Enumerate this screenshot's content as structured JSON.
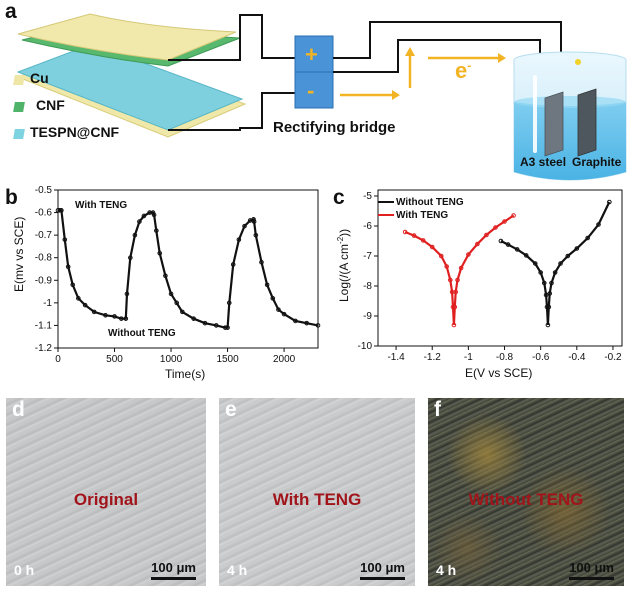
{
  "panel_a": {
    "label": "a",
    "legend": [
      {
        "name": "Cu",
        "color": "#efe6a6"
      },
      {
        "name": "CNF",
        "color": "#4fb36a"
      },
      {
        "name": "TESPN@CNF",
        "color": "#7ed3e0"
      }
    ],
    "bridge_plus": "+",
    "bridge_minus": "-",
    "bridge_label": "Rectifying bridge",
    "electron": "e",
    "electron_sup": "-",
    "electrode_left": "A3 steel",
    "electrode_right": "Graphite",
    "colors": {
      "arrow": "#f2b324",
      "bridge": "#4a93d6",
      "water": "#6fc3ea"
    }
  },
  "panel_b": {
    "label": "b",
    "annotations": {
      "with": "With TENG",
      "without": "Without TENG"
    },
    "chart_data": {
      "type": "line",
      "title": "",
      "xlabel": "Time(s)",
      "ylabel": "E(mv vs SCE)",
      "xlim": [
        0,
        2300
      ],
      "ylim": [
        -1.2,
        -0.5
      ],
      "xticks": [
        0,
        500,
        1000,
        1500,
        2000
      ],
      "yticks": [
        -0.5,
        -0.6,
        -0.7,
        -0.8,
        -0.9,
        -1.0,
        -1.1,
        -1.2
      ],
      "x": [
        0,
        15,
        30,
        60,
        90,
        130,
        180,
        240,
        320,
        420,
        500,
        560,
        600,
        610,
        640,
        680,
        720,
        760,
        810,
        840,
        850,
        870,
        900,
        950,
        1000,
        1050,
        1100,
        1200,
        1300,
        1400,
        1480,
        1500,
        1515,
        1550,
        1600,
        1650,
        1700,
        1730,
        1735,
        1750,
        1800,
        1850,
        1900,
        1950,
        2000,
        2100,
        2200,
        2300
      ],
      "values": [
        -0.59,
        -0.59,
        -0.59,
        -0.72,
        -0.84,
        -0.92,
        -0.98,
        -1.01,
        -1.04,
        -1.055,
        -1.06,
        -1.07,
        -1.07,
        -0.96,
        -0.8,
        -0.7,
        -0.64,
        -0.615,
        -0.6,
        -0.6,
        -0.61,
        -0.68,
        -0.78,
        -0.88,
        -0.96,
        -1.0,
        -1.04,
        -1.07,
        -1.09,
        -1.1,
        -1.11,
        -1.11,
        -1.0,
        -0.83,
        -0.72,
        -0.66,
        -0.635,
        -0.63,
        -0.64,
        -0.7,
        -0.82,
        -0.92,
        -0.98,
        -1.03,
        -1.05,
        -1.08,
        -1.09,
        -1.1
      ],
      "series_color": "#111111"
    }
  },
  "panel_c": {
    "label": "c",
    "chart_data": {
      "type": "line",
      "title": "",
      "xlabel": "E(V vs SCE)",
      "ylabel": "Log(/(A cm",
      "ylabel_sup": "-2",
      "ylabel_end": "))",
      "xlim": [
        -1.5,
        -0.15
      ],
      "ylim": [
        -10,
        -4.8
      ],
      "xticks": [
        -1.4,
        -1.2,
        -1.0,
        -0.8,
        -0.6,
        -0.4,
        -0.2
      ],
      "yticks": [
        -5,
        -6,
        -7,
        -8,
        -9,
        -10
      ],
      "series": [
        {
          "name": "Without TENG",
          "color": "#111111",
          "x": [
            -0.82,
            -0.78,
            -0.73,
            -0.68,
            -0.63,
            -0.6,
            -0.58,
            -0.57,
            -0.565,
            -0.56,
            -0.555,
            -0.55,
            -0.54,
            -0.52,
            -0.49,
            -0.45,
            -0.4,
            -0.34,
            -0.28,
            -0.22
          ],
          "y": [
            -6.5,
            -6.62,
            -6.78,
            -6.98,
            -7.25,
            -7.55,
            -7.9,
            -8.3,
            -8.7,
            -9.3,
            -8.7,
            -8.25,
            -7.9,
            -7.55,
            -7.25,
            -7.0,
            -6.75,
            -6.4,
            -5.95,
            -5.2
          ]
        },
        {
          "name": "With TENG",
          "color": "#e02020",
          "x": [
            -1.35,
            -1.3,
            -1.25,
            -1.2,
            -1.15,
            -1.12,
            -1.1,
            -1.09,
            -1.085,
            -1.08,
            -1.075,
            -1.07,
            -1.06,
            -1.04,
            -1.0,
            -0.95,
            -0.9,
            -0.85,
            -0.8,
            -0.75
          ],
          "y": [
            -6.2,
            -6.32,
            -6.48,
            -6.7,
            -7.0,
            -7.35,
            -7.8,
            -8.2,
            -8.7,
            -9.3,
            -8.7,
            -8.2,
            -7.8,
            -7.4,
            -6.95,
            -6.6,
            -6.3,
            -6.05,
            -5.85,
            -5.65
          ]
        }
      ]
    }
  },
  "panel_d": {
    "label": "d",
    "center": "Original",
    "time": "0 h",
    "scale": "100 μm"
  },
  "panel_e": {
    "label": "e",
    "center": "With TENG",
    "time": "4 h",
    "scale": "100 μm"
  },
  "panel_f": {
    "label": "f",
    "center": "Without TENG",
    "time": "4 h",
    "scale": "100 μm"
  }
}
